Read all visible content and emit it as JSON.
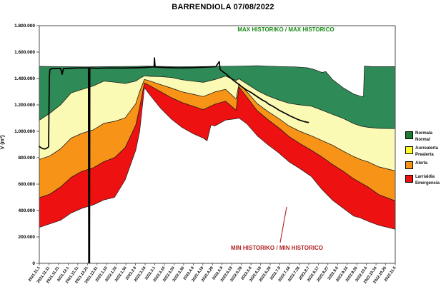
{
  "page": {
    "background": "#FFFFFF"
  },
  "chart_data": {
    "type": "area",
    "title": "BARRENDIOLA 07/08/2022",
    "ylabel": "V (m³)",
    "ylim": [
      0,
      1800000
    ],
    "x_range_days": 369,
    "grid": false,
    "y_tick_labels": [
      "0",
      "200.000",
      "400.000",
      "600.000",
      "800.000",
      "1.000.000",
      "1.200.000",
      "1.400.000",
      "1.600.000",
      "1.800.000"
    ],
    "x_tick_labels": [
      "2021.11.1",
      "2021.11.11",
      "2021.11.21",
      "2021.12.1",
      "2021.12.11",
      "2021.12.21",
      "2021.12.31",
      "2022.1.10",
      "2022.1.20",
      "2022.1.30",
      "2022.2.9",
      "2022.2.19",
      "2022.3.1",
      "2022.3.10",
      "2022.3.20",
      "2022.3.30",
      "2022.4.9",
      "2022.4.19",
      "2022.4.29",
      "2022.5.9",
      "2022.5.19",
      "2022.5.29",
      "2022.6.8",
      "2022.6.18",
      "2022.6.28",
      "2022.7.8",
      "2022.7.18",
      "2022.7.28",
      "2022.8.7",
      "2022.8.17",
      "2022.8.27",
      "2022.9.6",
      "2022.9.16",
      "2022.9.26",
      "2022.10.6",
      "2022.10.16",
      "2022.10.26",
      "2022.11.5"
    ],
    "annotations": {
      "max_label": "MAX HISTORIKO / MAX HISTORICO",
      "max_color": "#1B8A1B",
      "min_label": "MIN HISTORIKO / MIN HISTORICO",
      "min_color": "#B22222",
      "min_leader_line": {
        "from_day": 249.7,
        "from_v": 157000,
        "to_day": 256.4,
        "to_v": 427000
      }
    },
    "legend": [
      {
        "lines": [
          "Normala",
          "Normal"
        ],
        "color": "#1E7B33"
      },
      {
        "lines": [
          "Aurrealerta",
          "Prealerta"
        ],
        "color": "#FFFF2E"
      },
      {
        "lines": [
          "Alerta"
        ],
        "color": "#F79418"
      },
      {
        "lines": [
          "Larrialdia",
          "Emergencia"
        ],
        "color": "#EE1111"
      }
    ],
    "bands": [
      {
        "name": "normala",
        "color": "#2E8B57",
        "upper": "max",
        "lower": "b1"
      },
      {
        "name": "aurrealerta",
        "color": "#FAFAB4",
        "upper": "b1",
        "lower": "b2"
      },
      {
        "name": "alerta",
        "color": "#F79418",
        "upper": "b2",
        "lower": "b3"
      },
      {
        "name": "larrialdia",
        "color": "#EE1111",
        "upper": "b3",
        "lower": "b4"
      }
    ],
    "curves": {
      "max": [
        [
          0,
          1492000
        ],
        [
          20,
          1490000
        ],
        [
          50,
          1488000
        ],
        [
          100,
          1492000
        ],
        [
          110,
          1494000
        ],
        [
          140,
          1489000
        ],
        [
          170,
          1491000
        ],
        [
          200,
          1493000
        ],
        [
          226,
          1497000
        ],
        [
          248,
          1491000
        ],
        [
          265,
          1488000
        ],
        [
          278,
          1481000
        ],
        [
          285,
          1468000
        ],
        [
          293,
          1446000
        ],
        [
          297,
          1452000
        ],
        [
          304,
          1392000
        ],
        [
          315,
          1330000
        ],
        [
          326,
          1282000
        ],
        [
          333,
          1266000
        ],
        [
          336,
          1262000
        ],
        [
          337,
          1494000
        ],
        [
          345,
          1490000
        ],
        [
          369,
          1490000
        ]
      ],
      "b1": [
        [
          0,
          1083000
        ],
        [
          11,
          1137000
        ],
        [
          22,
          1200000
        ],
        [
          33,
          1290000
        ],
        [
          44,
          1317000
        ],
        [
          56,
          1344000
        ],
        [
          67,
          1380000
        ],
        [
          78,
          1372000
        ],
        [
          89,
          1362000
        ],
        [
          100,
          1380000
        ],
        [
          104,
          1400000
        ],
        [
          109,
          1420000
        ],
        [
          115,
          1416000
        ],
        [
          126,
          1414000
        ],
        [
          137,
          1407000
        ],
        [
          148,
          1390000
        ],
        [
          159,
          1380000
        ],
        [
          170,
          1371000
        ],
        [
          182,
          1392000
        ],
        [
          193,
          1418000
        ],
        [
          204,
          1385000
        ],
        [
          207,
          1398000
        ],
        [
          215,
          1360000
        ],
        [
          226,
          1308000
        ],
        [
          237,
          1268000
        ],
        [
          248,
          1238000
        ],
        [
          259,
          1212000
        ],
        [
          270,
          1200000
        ],
        [
          282,
          1190000
        ],
        [
          293,
          1160000
        ],
        [
          304,
          1128000
        ],
        [
          315,
          1098000
        ],
        [
          326,
          1058000
        ],
        [
          333,
          1040000
        ],
        [
          341,
          1030000
        ],
        [
          352,
          1022000
        ],
        [
          369,
          1020000
        ]
      ],
      "b2": [
        [
          0,
          786000
        ],
        [
          11,
          813000
        ],
        [
          22,
          867000
        ],
        [
          33,
          948000
        ],
        [
          44,
          984000
        ],
        [
          56,
          1011000
        ],
        [
          67,
          1060000
        ],
        [
          78,
          1075000
        ],
        [
          89,
          1101000
        ],
        [
          100,
          1209000
        ],
        [
          104,
          1300000
        ],
        [
          109,
          1393000
        ],
        [
          115,
          1380000
        ],
        [
          126,
          1353000
        ],
        [
          137,
          1327000
        ],
        [
          148,
          1299000
        ],
        [
          159,
          1281000
        ],
        [
          170,
          1263000
        ],
        [
          182,
          1298000
        ],
        [
          193,
          1318000
        ],
        [
          204,
          1245000
        ],
        [
          207,
          1360000
        ],
        [
          215,
          1300000
        ],
        [
          226,
          1209000
        ],
        [
          237,
          1150000
        ],
        [
          248,
          1098000
        ],
        [
          259,
          1040000
        ],
        [
          270,
          1000000
        ],
        [
          282,
          966000
        ],
        [
          293,
          930000
        ],
        [
          304,
          894000
        ],
        [
          315,
          850000
        ],
        [
          326,
          808000
        ],
        [
          333,
          786000
        ],
        [
          341,
          768000
        ],
        [
          352,
          730000
        ],
        [
          369,
          700000
        ]
      ],
      "b3": [
        [
          0,
          497000
        ],
        [
          11,
          524000
        ],
        [
          22,
          578000
        ],
        [
          33,
          651000
        ],
        [
          44,
          696000
        ],
        [
          56,
          723000
        ],
        [
          67,
          770000
        ],
        [
          78,
          800000
        ],
        [
          89,
          876000
        ],
        [
          100,
          1047000
        ],
        [
          104,
          1180000
        ],
        [
          109,
          1366000
        ],
        [
          115,
          1344000
        ],
        [
          126,
          1299000
        ],
        [
          137,
          1254000
        ],
        [
          148,
          1218000
        ],
        [
          159,
          1191000
        ],
        [
          170,
          1164000
        ],
        [
          182,
          1205000
        ],
        [
          193,
          1228000
        ],
        [
          204,
          1160000
        ],
        [
          207,
          1335000
        ],
        [
          215,
          1260000
        ],
        [
          226,
          1155000
        ],
        [
          237,
          1088000
        ],
        [
          248,
          1028000
        ],
        [
          259,
          960000
        ],
        [
          270,
          908000
        ],
        [
          282,
          856000
        ],
        [
          293,
          806000
        ],
        [
          304,
          748000
        ],
        [
          315,
          698000
        ],
        [
          326,
          640000
        ],
        [
          333,
          610000
        ],
        [
          341,
          578000
        ],
        [
          352,
          520000
        ],
        [
          369,
          473000
        ]
      ],
      "b4": [
        [
          0,
          272000
        ],
        [
          11,
          299000
        ],
        [
          22,
          326000
        ],
        [
          33,
          381000
        ],
        [
          44,
          416000
        ],
        [
          56,
          443000
        ],
        [
          67,
          480000
        ],
        [
          78,
          500000
        ],
        [
          89,
          632000
        ],
        [
          100,
          858000
        ],
        [
          104,
          1000000
        ],
        [
          109,
          1330000
        ],
        [
          115,
          1272000
        ],
        [
          126,
          1173000
        ],
        [
          137,
          1092000
        ],
        [
          148,
          1029000
        ],
        [
          159,
          984000
        ],
        [
          170,
          948000
        ],
        [
          174,
          928000
        ],
        [
          178,
          1048000
        ],
        [
          182,
          1040000
        ],
        [
          193,
          1085000
        ],
        [
          204,
          1095000
        ],
        [
          207,
          1100000
        ],
        [
          215,
          1058000
        ],
        [
          226,
          966000
        ],
        [
          237,
          898000
        ],
        [
          248,
          838000
        ],
        [
          259,
          768000
        ],
        [
          270,
          718000
        ],
        [
          282,
          658000
        ],
        [
          293,
          560000
        ],
        [
          304,
          478000
        ],
        [
          315,
          418000
        ],
        [
          326,
          358000
        ],
        [
          333,
          344000
        ],
        [
          341,
          318000
        ],
        [
          352,
          288000
        ],
        [
          369,
          258000
        ]
      ]
    },
    "volume_line": {
      "color": "#000000",
      "points": [
        [
          0,
          885000
        ],
        [
          3,
          870000
        ],
        [
          6,
          866000
        ],
        [
          9,
          878000
        ],
        [
          9.6,
          885000
        ],
        [
          10.4,
          1405000
        ],
        [
          11,
          1468000
        ],
        [
          14,
          1477000
        ],
        [
          22,
          1476000
        ],
        [
          23.7,
          1432000
        ],
        [
          25,
          1475000
        ],
        [
          32,
          1478000
        ],
        [
          40,
          1480000
        ],
        [
          50,
          1480000
        ],
        [
          51,
          1482000
        ],
        [
          51.3,
          5000
        ],
        [
          52.1,
          5000
        ],
        [
          52.4,
          1480000
        ],
        [
          60,
          1478000
        ],
        [
          72,
          1480000
        ],
        [
          85,
          1479000
        ],
        [
          100,
          1481000
        ],
        [
          110,
          1484000
        ],
        [
          119,
          1488000
        ],
        [
          119.4,
          1556000
        ],
        [
          120,
          1487000
        ],
        [
          130,
          1483000
        ],
        [
          145,
          1480000
        ],
        [
          160,
          1482000
        ],
        [
          175,
          1487000
        ],
        [
          183,
          1490000
        ],
        [
          186.6,
          1528000
        ],
        [
          187.4,
          1470000
        ],
        [
          190,
          1453000
        ],
        [
          194,
          1432000
        ],
        [
          198,
          1405000
        ],
        [
          202,
          1382000
        ],
        [
          206,
          1360000
        ],
        [
          211,
          1332000
        ],
        [
          215,
          1312000
        ],
        [
          220,
          1292000
        ],
        [
          226,
          1262000
        ],
        [
          231,
          1238000
        ],
        [
          235,
          1222000
        ],
        [
          238,
          1205000
        ],
        [
          242,
          1190000
        ],
        [
          246,
          1172000
        ],
        [
          249,
          1158000
        ],
        [
          253,
          1143000
        ],
        [
          257,
          1128000
        ],
        [
          260,
          1116000
        ],
        [
          264,
          1103000
        ],
        [
          268,
          1090000
        ],
        [
          271,
          1082000
        ],
        [
          275,
          1073000
        ],
        [
          279,
          1067000
        ]
      ]
    }
  }
}
